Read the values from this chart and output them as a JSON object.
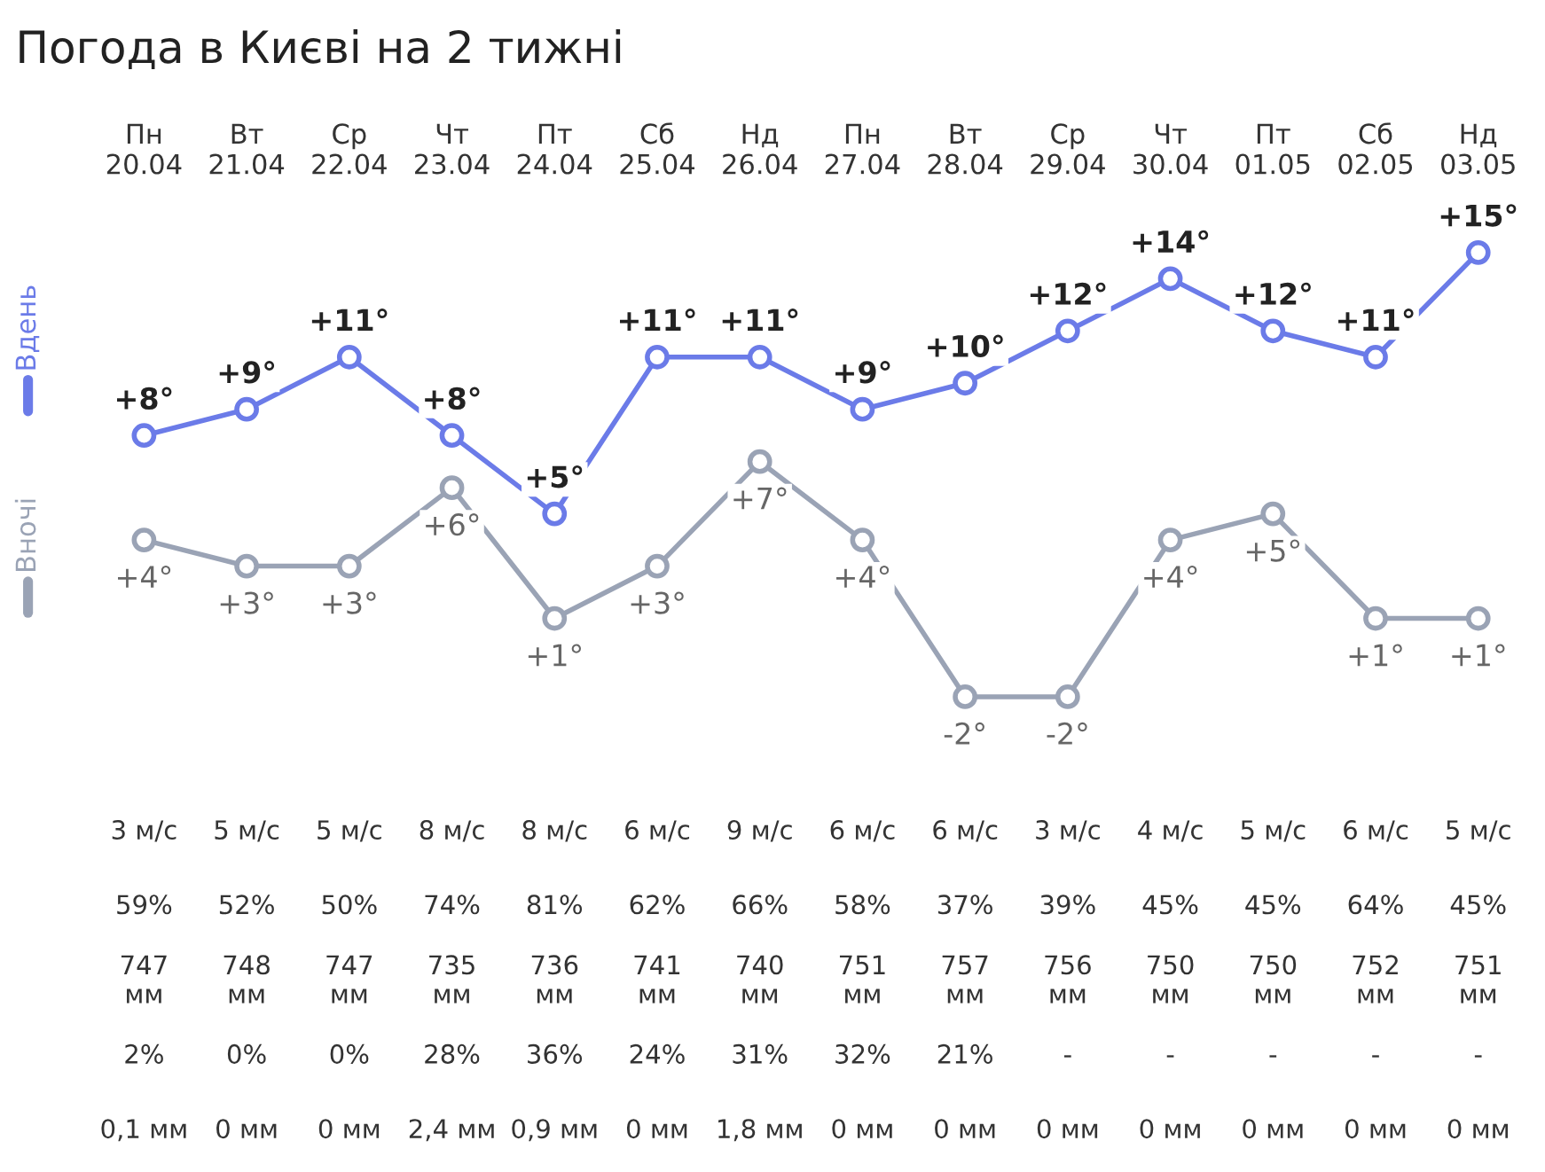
{
  "chart_data": {
    "type": "line",
    "title": "Погода в Києві на 2 тижні",
    "categories": [
      "Пн\n20.04",
      "Вт\n21.04",
      "Ср\n22.04",
      "Чт\n23.04",
      "Пт\n24.04",
      "Сб\n25.04",
      "Нд\n26.04",
      "Пн\n27.04",
      "Вт\n28.04",
      "Ср\n29.04",
      "Чт\n30.04",
      "Пт\n01.05",
      "Сб\n02.05",
      "Нд\n03.05"
    ],
    "series": [
      {
        "name": "Вдень",
        "color": "#6b7be8",
        "values": [
          8,
          9,
          11,
          8,
          5,
          11,
          11,
          9,
          10,
          12,
          14,
          12,
          11,
          15
        ],
        "value_labels": [
          "+8°",
          "+9°",
          "+11°",
          "+8°",
          "+5°",
          "+11°",
          "+11°",
          "+9°",
          "+10°",
          "+12°",
          "+14°",
          "+12°",
          "+11°",
          "+15°"
        ]
      },
      {
        "name": "Вночі",
        "color": "#9aa3b5",
        "values": [
          4,
          3,
          3,
          6,
          1,
          3,
          7,
          4,
          -2,
          -2,
          4,
          5,
          1,
          1
        ],
        "value_labels": [
          "+4°",
          "+3°",
          "+3°",
          "+6°",
          "+1°",
          "+3°",
          "+7°",
          "+4°",
          "-2°",
          "-2°",
          "+4°",
          "+5°",
          "+1°",
          "+1°"
        ]
      }
    ],
    "marker": "circle",
    "line_style": "solid",
    "grid": false,
    "legend": "left",
    "tick_labels": "x",
    "annotations": [
      "3 м/с",
      "5 м/с",
      "5 м/с",
      "8 м/с",
      "8 м/с",
      "6 м/с",
      "9 м/с",
      "6 м/с",
      "6 м/с",
      "3 м/с",
      "4 м/с",
      "5 м/с",
      "6 м/с",
      "5 м/с",
      "59%",
      "52%",
      "50%",
      "74%",
      "81%",
      "62%",
      "66%",
      "58%",
      "37%",
      "39%",
      "45%",
      "45%",
      "64%",
      "45%",
      "747\nмм",
      "748\nмм",
      "747\nмм",
      "735\nмм",
      "736\nмм",
      "741\nмм",
      "740\nмм",
      "751\nмм",
      "757\nмм",
      "756\nмм",
      "750\nмм",
      "750\nмм",
      "752\nмм",
      "751\nмм",
      "2%",
      "0%",
      "0%",
      "28%",
      "36%",
      "24%",
      "31%",
      "32%",
      "21%",
      "-",
      "-",
      "-",
      "-",
      "-",
      "0,1 мм",
      "0 мм",
      "0 мм",
      "2,4 мм",
      "0,9 мм",
      "0 мм",
      "1,8 мм",
      "0 мм",
      "0 мм",
      "0 мм",
      "0 мм",
      "0 мм",
      "0 мм",
      "0 мм"
    ]
  }
}
